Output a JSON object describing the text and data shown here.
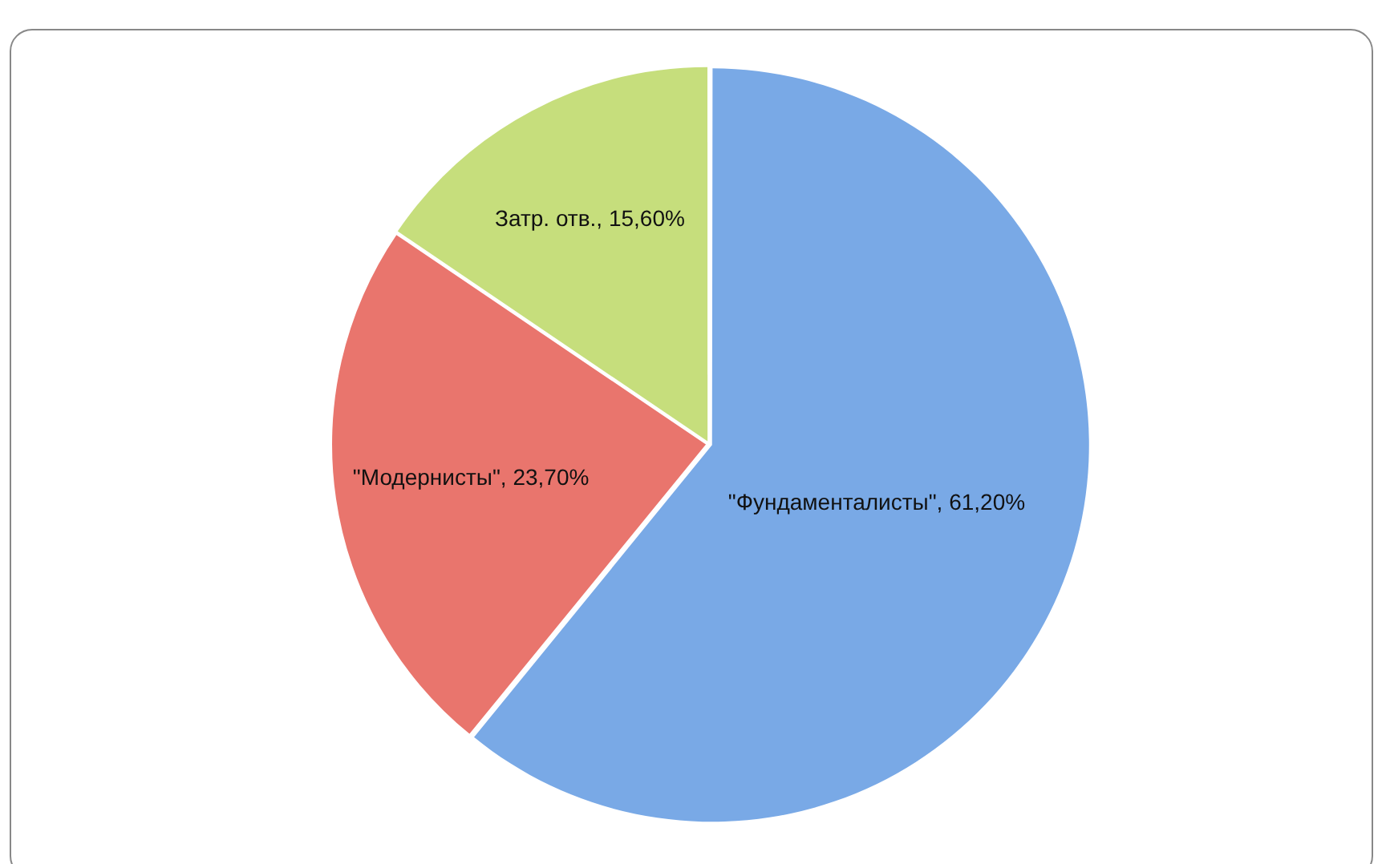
{
  "chart_data": {
    "type": "pie",
    "categories": [
      "\"Фундаменталисты\"",
      "\"Модернисты\"",
      "Затр. отв."
    ],
    "values": [
      61.2,
      23.7,
      15.6
    ],
    "colors": [
      "#79a9e6",
      "#e9756d",
      "#c6de7c"
    ],
    "value_labels": [
      "61,20%",
      "23,70%",
      "15,60%"
    ],
    "legend": false
  }
}
